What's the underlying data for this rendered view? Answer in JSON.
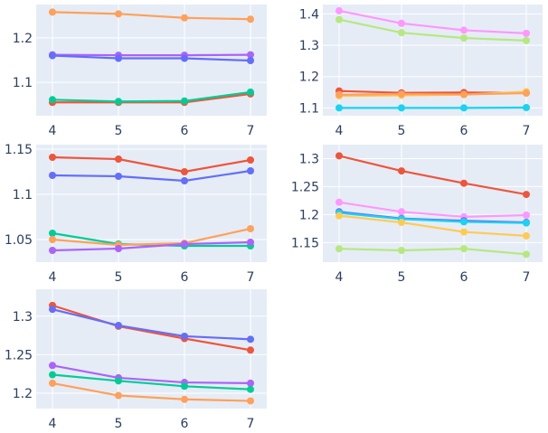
{
  "chart_data": [
    {
      "type": "line",
      "x": [
        4,
        5,
        6,
        7
      ],
      "ylim": [
        1.025,
        1.275
      ],
      "yticks": [
        1.1,
        1.2
      ],
      "ytick_labels": [
        "1.1",
        "1.2"
      ],
      "series": [
        {
          "color": "#FFA15A",
          "values": [
            1.258,
            1.254,
            1.245,
            1.242
          ]
        },
        {
          "color": "#AB63FA",
          "values": [
            1.162,
            1.161,
            1.161,
            1.162
          ]
        },
        {
          "color": "#636EFA",
          "values": [
            1.16,
            1.154,
            1.154,
            1.149
          ]
        },
        {
          "color": "#EF553B",
          "values": [
            1.055,
            1.055,
            1.055,
            1.074
          ]
        },
        {
          "color": "#00CC96",
          "values": [
            1.061,
            1.057,
            1.058,
            1.078
          ]
        }
      ]
    },
    {
      "type": "line",
      "x": [
        4,
        5,
        6,
        7
      ],
      "ylim": [
        1.075,
        1.43
      ],
      "yticks": [
        1.1,
        1.2,
        1.3,
        1.4
      ],
      "ytick_labels": [
        "1.1",
        "1.2",
        "1.3",
        "1.4"
      ],
      "series": [
        {
          "color": "#FF97FF",
          "values": [
            1.41,
            1.37,
            1.348,
            1.338
          ]
        },
        {
          "color": "#B6E880",
          "values": [
            1.382,
            1.34,
            1.323,
            1.315
          ]
        },
        {
          "color": "#EF553B",
          "values": [
            1.154,
            1.148,
            1.149,
            1.148
          ]
        },
        {
          "color": "#FECB52",
          "values": [
            1.138,
            1.14,
            1.142,
            1.152
          ]
        },
        {
          "color": "#FFA15A",
          "values": [
            1.142,
            1.144,
            1.143,
            1.147
          ]
        },
        {
          "color": "#19D3F3",
          "values": [
            1.1,
            1.1,
            1.1,
            1.101
          ]
        }
      ]
    },
    {
      "type": "line",
      "x": [
        4,
        5,
        6,
        7
      ],
      "ylim": [
        1.025,
        1.155
      ],
      "yticks": [
        1.05,
        1.1,
        1.15
      ],
      "ytick_labels": [
        "1.05",
        "1.1",
        "1.15"
      ],
      "series": [
        {
          "color": "#EF553B",
          "values": [
            1.141,
            1.139,
            1.125,
            1.138
          ]
        },
        {
          "color": "#636EFA",
          "values": [
            1.121,
            1.12,
            1.115,
            1.126
          ]
        },
        {
          "color": "#00CC96",
          "values": [
            1.057,
            1.045,
            1.043,
            1.043
          ]
        },
        {
          "color": "#FFA15A",
          "values": [
            1.05,
            1.044,
            1.046,
            1.062
          ]
        },
        {
          "color": "#AB63FA",
          "values": [
            1.038,
            1.04,
            1.045,
            1.047
          ]
        }
      ]
    },
    {
      "type": "line",
      "x": [
        4,
        5,
        6,
        7
      ],
      "ylim": [
        1.115,
        1.325
      ],
      "yticks": [
        1.15,
        1.2,
        1.25,
        1.3
      ],
      "ytick_labels": [
        "1.15",
        "1.2",
        "1.25",
        "1.3"
      ],
      "series": [
        {
          "color": "#EF553B",
          "values": [
            1.305,
            1.278,
            1.256,
            1.236
          ]
        },
        {
          "color": "#FF97FF",
          "values": [
            1.222,
            1.205,
            1.196,
            1.199
          ]
        },
        {
          "color": "#636EFA",
          "values": [
            1.205,
            1.193,
            1.189,
            1.186
          ]
        },
        {
          "color": "#19D3F3",
          "values": [
            1.203,
            1.192,
            1.187,
            1.185
          ]
        },
        {
          "color": "#FECB52",
          "values": [
            1.198,
            1.186,
            1.169,
            1.162
          ]
        },
        {
          "color": "#B6E880",
          "values": [
            1.139,
            1.136,
            1.139,
            1.129
          ]
        }
      ]
    },
    {
      "type": "line",
      "x": [
        4,
        5,
        6,
        7
      ],
      "ylim": [
        1.18,
        1.335
      ],
      "yticks": [
        1.2,
        1.25,
        1.3
      ],
      "ytick_labels": [
        "1.2",
        "1.25",
        "1.3"
      ],
      "series": [
        {
          "color": "#EF553B",
          "values": [
            1.314,
            1.287,
            1.271,
            1.256
          ]
        },
        {
          "color": "#636EFA",
          "values": [
            1.309,
            1.288,
            1.274,
            1.27
          ]
        },
        {
          "color": "#AB63FA",
          "values": [
            1.236,
            1.22,
            1.214,
            1.213
          ]
        },
        {
          "color": "#00CC96",
          "values": [
            1.224,
            1.216,
            1.209,
            1.205
          ]
        },
        {
          "color": "#FFA15A",
          "values": [
            1.213,
            1.197,
            1.192,
            1.19
          ]
        }
      ]
    }
  ]
}
